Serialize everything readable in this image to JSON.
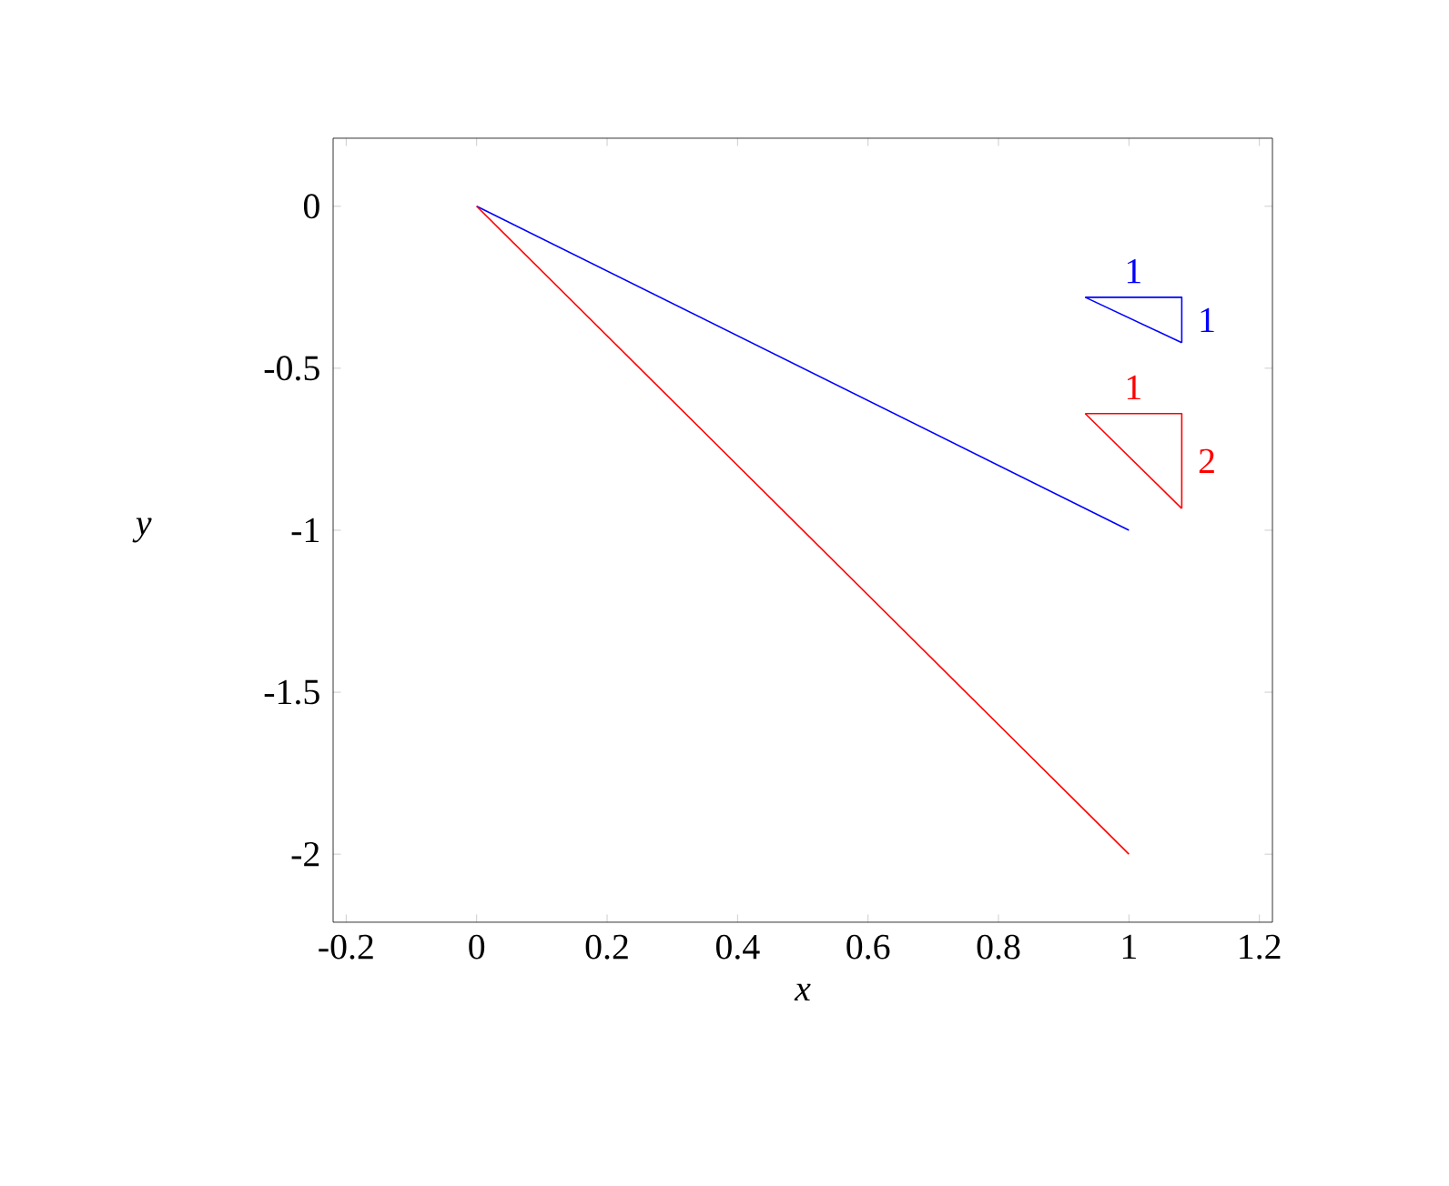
{
  "chart_data": {
    "type": "line",
    "xlabel": "*x*",
    "ylabel": "*y*",
    "xlim": [
      -0.22,
      1.22
    ],
    "ylim": [
      -2.21,
      0.21
    ],
    "xticks": [
      -0.2,
      0,
      0.2,
      0.4,
      0.6,
      0.8,
      1,
      1.2
    ],
    "yticks": [
      -2,
      -1.5,
      -1,
      -0.5,
      0
    ],
    "grid": false,
    "marker": "none",
    "line_style": "solid",
    "series": [
      {
        "color": "#0000ff",
        "x": [
          0,
          1
        ],
        "values": [
          0,
          -1
        ]
      },
      {
        "color": "#ff0000",
        "x": [
          0,
          1
        ],
        "values": [
          0,
          -2
        ]
      },
      {
        "color": "#0000ff",
        "x": [
          0.933,
          1.081,
          1.081
        ],
        "values": [
          -0.281,
          -0.281,
          -0.421
        ]
      },
      {
        "color": "#0000ff",
        "x": [
          0.933,
          1.081
        ],
        "values": [
          -0.281,
          -0.421
        ]
      },
      {
        "color": "#ff0000",
        "x": [
          0.933,
          1.081,
          1.081
        ],
        "values": [
          -0.64,
          -0.64,
          -0.933
        ]
      },
      {
        "color": "#ff0000",
        "x": [
          0.933,
          1.081
        ],
        "values": [
          -0.64,
          -0.933
        ]
      }
    ],
    "annotations": [
      "1",
      "1",
      "1",
      "2"
    ]
  }
}
